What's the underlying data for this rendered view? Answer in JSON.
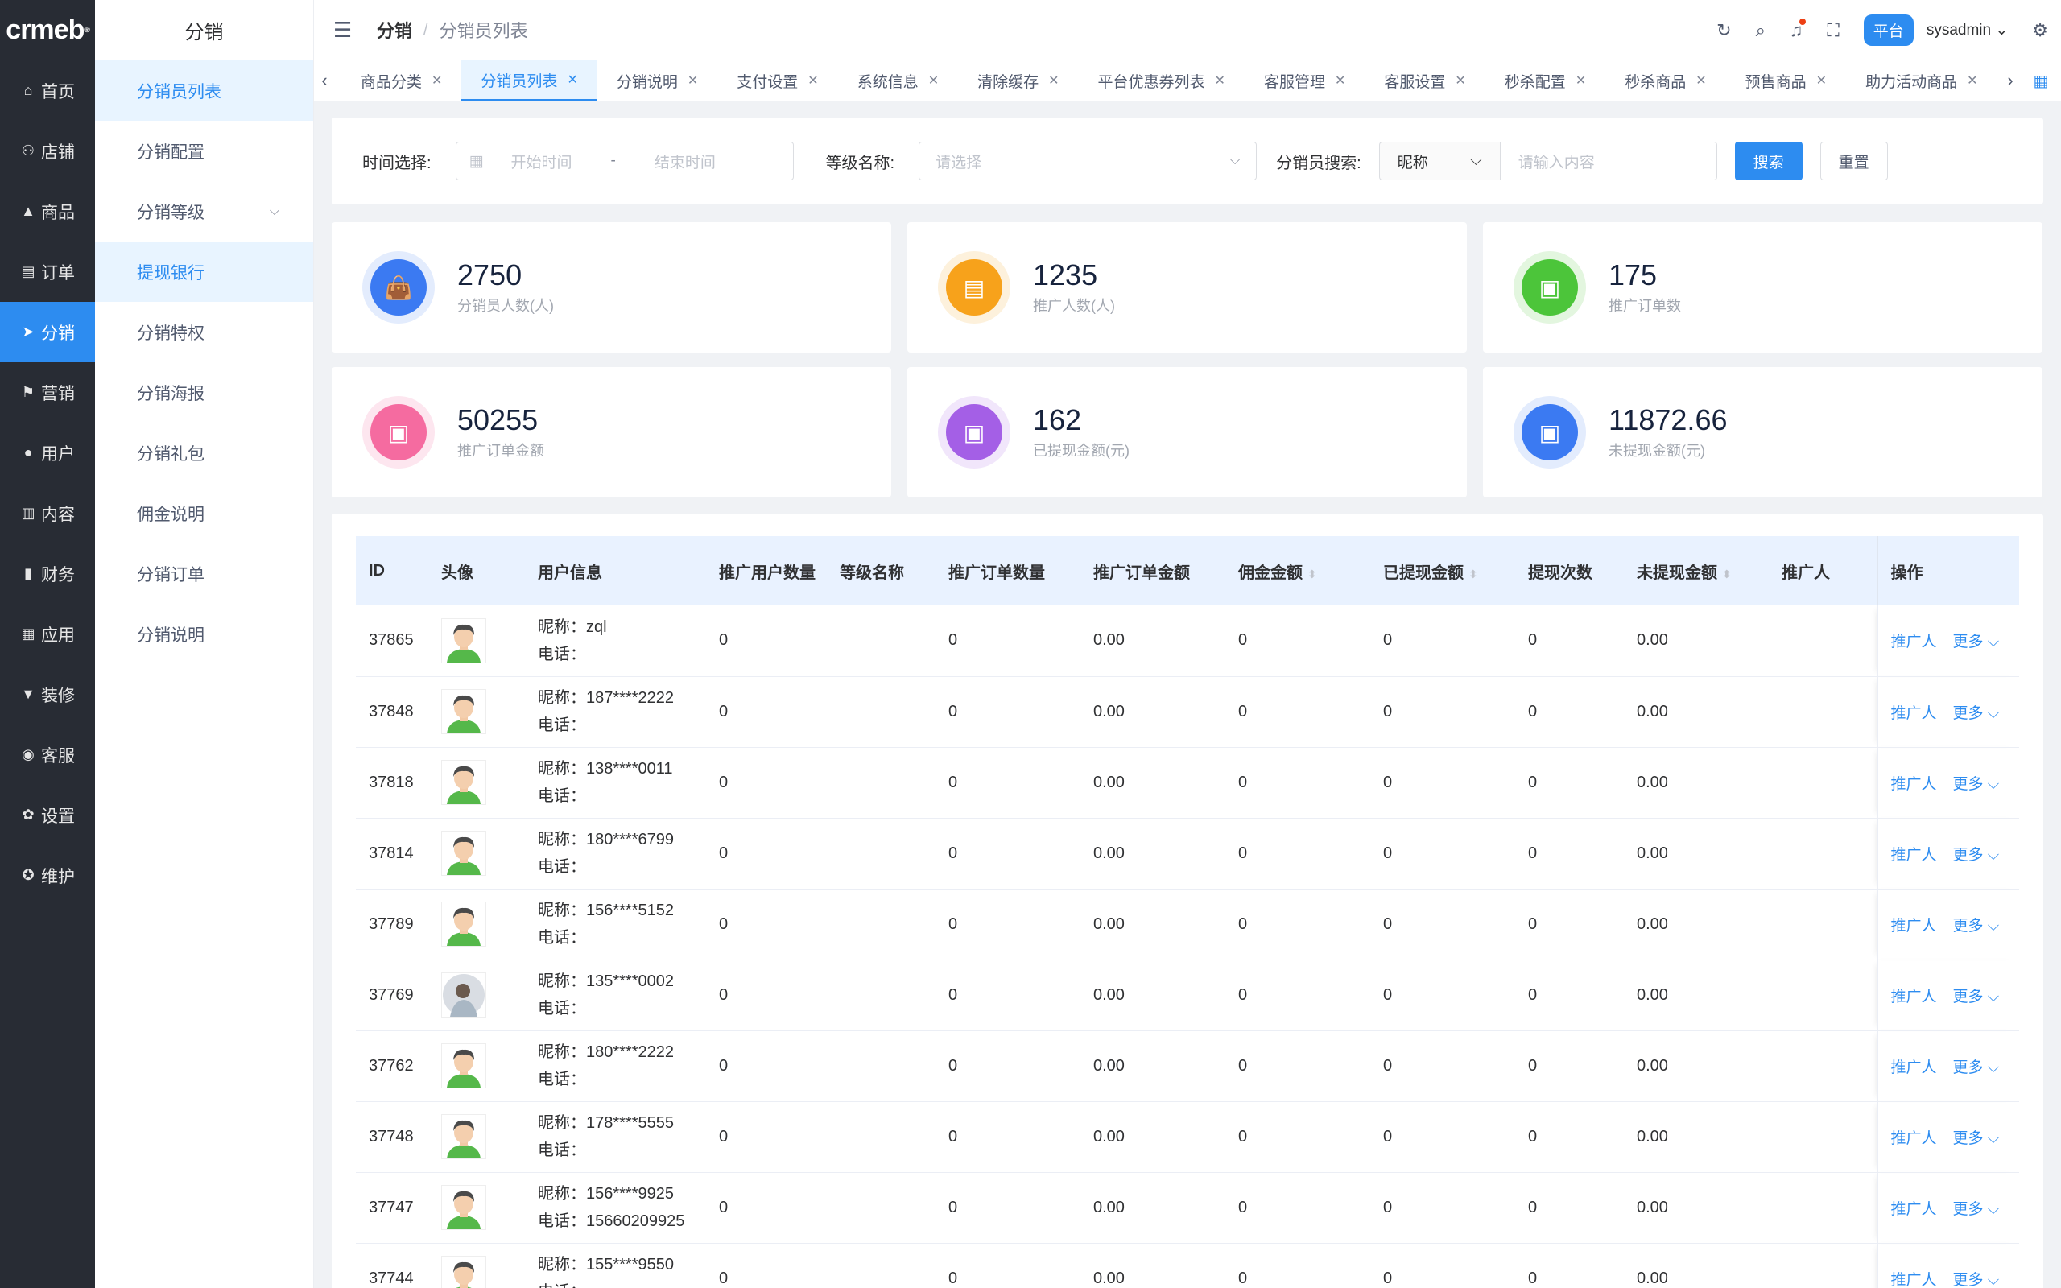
{
  "nav": {
    "logo": "crmeb",
    "items": [
      {
        "label": "首页",
        "icon": "home-icon",
        "glyph": "⌂"
      },
      {
        "label": "店铺",
        "icon": "store-icon",
        "glyph": "⚇"
      },
      {
        "label": "商品",
        "icon": "product-icon",
        "glyph": "▲"
      },
      {
        "label": "订单",
        "icon": "order-icon",
        "glyph": "▤"
      },
      {
        "label": "分销",
        "icon": "distribution-icon",
        "glyph": "➤"
      },
      {
        "label": "营销",
        "icon": "marketing-icon",
        "glyph": "⚑"
      },
      {
        "label": "用户",
        "icon": "user-icon",
        "glyph": "●"
      },
      {
        "label": "内容",
        "icon": "content-icon",
        "glyph": "▥"
      },
      {
        "label": "财务",
        "icon": "finance-icon",
        "glyph": "▮"
      },
      {
        "label": "应用",
        "icon": "apps-icon",
        "glyph": "▦"
      },
      {
        "label": "装修",
        "icon": "decorate-icon",
        "glyph": "▼"
      },
      {
        "label": "客服",
        "icon": "service-icon",
        "glyph": "◉"
      },
      {
        "label": "设置",
        "icon": "settings-icon",
        "glyph": "✿"
      },
      {
        "label": "维护",
        "icon": "maintain-icon",
        "glyph": "✪"
      }
    ]
  },
  "submenu": {
    "title": "分销",
    "items": [
      "分销员列表",
      "分销配置",
      "分销等级",
      "提现银行",
      "分销特权",
      "分销海报",
      "分销礼包",
      "佣金说明",
      "分销订单",
      "分销说明"
    ]
  },
  "header": {
    "crumb1": "分销",
    "separator": "/",
    "crumb2": "分销员列表",
    "platform": "平台",
    "user": "sysadmin"
  },
  "tabs": [
    "商品分类",
    "分销员列表",
    "分销说明",
    "支付设置",
    "系统信息",
    "清除缓存",
    "平台优惠券列表",
    "客服管理",
    "客服设置",
    "秒杀配置",
    "秒杀商品",
    "预售商品",
    "助力活动商品"
  ],
  "filter": {
    "time_label": "时间选择:",
    "start_placeholder": "开始时间",
    "dash": "-",
    "end_placeholder": "结束时间",
    "level_label": "等级名称:",
    "level_placeholder": "请选择",
    "search_label": "分销员搜索:",
    "search_type": "昵称",
    "keyword_placeholder": "请输入内容",
    "search_button": "搜索",
    "reset_button": "重置"
  },
  "stats": [
    {
      "value": "2750",
      "label": "分销员人数(人)",
      "color": "#3b7af2",
      "ring": "#e3ecfd",
      "icon": "bag-icon"
    },
    {
      "value": "1235",
      "label": "推广人数(人)",
      "color": "#f7a21b",
      "ring": "#fdf1dc",
      "icon": "clipboard-icon"
    },
    {
      "value": "175",
      "label": "推广订单数",
      "color": "#4cc53a",
      "ring": "#e3f6df",
      "icon": "briefcase-icon"
    },
    {
      "value": "50255",
      "label": "推广订单金额",
      "color": "#f56ba0",
      "ring": "#fde6ef",
      "icon": "briefcase-icon"
    },
    {
      "value": "162",
      "label": "已提现金额(元)",
      "color": "#a45fe6",
      "ring": "#f1e6fb",
      "icon": "briefcase-icon"
    },
    {
      "value": "11872.66",
      "label": "未提现金额(元)",
      "color": "#3b7af2",
      "ring": "#e3ecfd",
      "icon": "briefcase-icon"
    }
  ],
  "table": {
    "headers": [
      "ID",
      "头像",
      "用户信息",
      "推广用户数量",
      "等级名称",
      "推广订单数量",
      "推广订单金额",
      "佣金金额",
      "已提现金额",
      "提现次数",
      "未提现金额",
      "推广人",
      "操作"
    ],
    "nick_prefix": "昵称：",
    "phone_prefix": "电话：",
    "action_promoter": "推广人",
    "action_more": "更多",
    "rows": [
      {
        "id": "37865",
        "nickname": "zql",
        "phone": "",
        "promo_users": "0",
        "level": "",
        "promo_orders": "0",
        "promo_amount": "0.00",
        "commission": "0",
        "withdrawn": "0",
        "withdraw_times": "0",
        "unwithdrawn": "0.00",
        "promoter": "",
        "avatar": "cartoon"
      },
      {
        "id": "37848",
        "nickname": "187****2222",
        "phone": "",
        "promo_users": "0",
        "level": "",
        "promo_orders": "0",
        "promo_amount": "0.00",
        "commission": "0",
        "withdrawn": "0",
        "withdraw_times": "0",
        "unwithdrawn": "0.00",
        "promoter": "",
        "avatar": "cartoon"
      },
      {
        "id": "37818",
        "nickname": "138****0011",
        "phone": "",
        "promo_users": "0",
        "level": "",
        "promo_orders": "0",
        "promo_amount": "0.00",
        "commission": "0",
        "withdrawn": "0",
        "withdraw_times": "0",
        "unwithdrawn": "0.00",
        "promoter": "",
        "avatar": "cartoon"
      },
      {
        "id": "37814",
        "nickname": "180****6799",
        "phone": "",
        "promo_users": "0",
        "level": "",
        "promo_orders": "0",
        "promo_amount": "0.00",
        "commission": "0",
        "withdrawn": "0",
        "withdraw_times": "0",
        "unwithdrawn": "0.00",
        "promoter": "",
        "avatar": "cartoon"
      },
      {
        "id": "37789",
        "nickname": "156****5152",
        "phone": "",
        "promo_users": "0",
        "level": "",
        "promo_orders": "0",
        "promo_amount": "0.00",
        "commission": "0",
        "withdrawn": "0",
        "withdraw_times": "0",
        "unwithdrawn": "0.00",
        "promoter": "",
        "avatar": "cartoon"
      },
      {
        "id": "37769",
        "nickname": "135****0002",
        "phone": "",
        "promo_users": "0",
        "level": "",
        "promo_orders": "0",
        "promo_amount": "0.00",
        "commission": "0",
        "withdrawn": "0",
        "withdraw_times": "0",
        "unwithdrawn": "0.00",
        "promoter": "",
        "avatar": "photo"
      },
      {
        "id": "37762",
        "nickname": "180****2222",
        "phone": "",
        "promo_users": "0",
        "level": "",
        "promo_orders": "0",
        "promo_amount": "0.00",
        "commission": "0",
        "withdrawn": "0",
        "withdraw_times": "0",
        "unwithdrawn": "0.00",
        "promoter": "",
        "avatar": "cartoon"
      },
      {
        "id": "37748",
        "nickname": "178****5555",
        "phone": "",
        "promo_users": "0",
        "level": "",
        "promo_orders": "0",
        "promo_amount": "0.00",
        "commission": "0",
        "withdrawn": "0",
        "withdraw_times": "0",
        "unwithdrawn": "0.00",
        "promoter": "",
        "avatar": "cartoon"
      },
      {
        "id": "37747",
        "nickname": "156****9925",
        "phone": "15660209925",
        "promo_users": "0",
        "level": "",
        "promo_orders": "0",
        "promo_amount": "0.00",
        "commission": "0",
        "withdrawn": "0",
        "withdraw_times": "0",
        "unwithdrawn": "0.00",
        "promoter": "",
        "avatar": "cartoon"
      },
      {
        "id": "37744",
        "nickname": "155****9550",
        "phone": "",
        "promo_users": "0",
        "level": "",
        "promo_orders": "0",
        "promo_amount": "0.00",
        "commission": "0",
        "withdrawn": "0",
        "withdraw_times": "0",
        "unwithdrawn": "0.00",
        "promoter": "",
        "avatar": "cartoon"
      }
    ]
  },
  "state": {
    "active_nav": 4,
    "active_submenu": [
      0,
      3
    ],
    "active_tab": 1
  }
}
